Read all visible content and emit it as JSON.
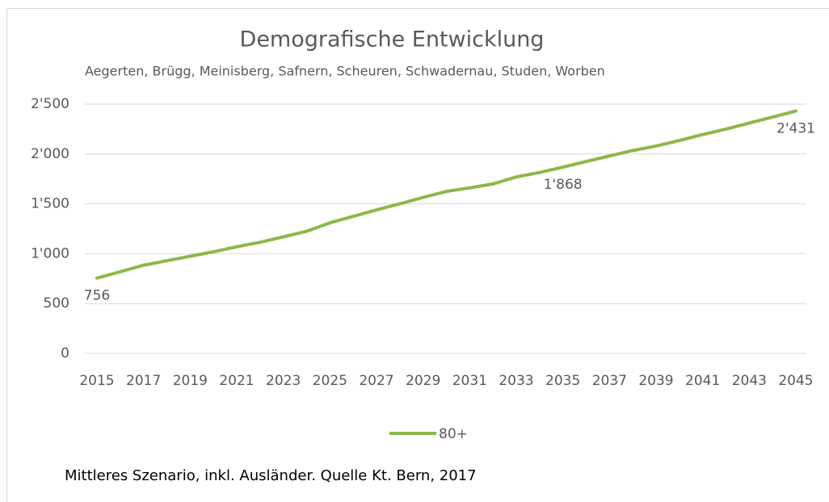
{
  "chart_data": {
    "type": "line",
    "title": "Demografische Entwicklung",
    "subtitle": "Aegerten, Brügg, Meinisberg, Safnern, Scheuren, Schwadernau, Studen, Worben",
    "note": "Mittleres Szenario, inkl. Ausländer. Quelle Kt. Bern, 2017",
    "x": [
      2015,
      2016,
      2017,
      2018,
      2019,
      2020,
      2021,
      2022,
      2023,
      2024,
      2025,
      2026,
      2027,
      2028,
      2029,
      2030,
      2031,
      2032,
      2033,
      2034,
      2035,
      2036,
      2037,
      2038,
      2039,
      2040,
      2041,
      2042,
      2043,
      2044,
      2045
    ],
    "xlim": [
      2015,
      2045
    ],
    "xticks": [
      2015,
      2017,
      2019,
      2021,
      2023,
      2025,
      2027,
      2029,
      2031,
      2033,
      2035,
      2037,
      2039,
      2041,
      2043,
      2045
    ],
    "ylim": [
      0,
      2500
    ],
    "yticks": [
      0,
      500,
      {
        "value": 1000,
        "label": "1'000"
      },
      {
        "value": 1500,
        "label": "1'500"
      },
      {
        "value": 2000,
        "label": "2'000"
      },
      {
        "value": 2500,
        "label": "2'500"
      }
    ],
    "grid": true,
    "legend": "bottom",
    "series": [
      {
        "name": "80+",
        "color": "#8cb84a",
        "values": [
          756,
          820,
          885,
          930,
          975,
          1020,
          1070,
          1115,
          1170,
          1225,
          1310,
          1375,
          1440,
          1500,
          1565,
          1625,
          1660,
          1700,
          1770,
          1815,
          1868,
          1925,
          1980,
          2035,
          2080,
          2135,
          2195,
          2250,
          2310,
          2370,
          2431
        ],
        "value_labels": [
          "756",
          null,
          null,
          null,
          null,
          null,
          null,
          null,
          null,
          null,
          null,
          null,
          null,
          null,
          null,
          null,
          null,
          null,
          null,
          null,
          "1'868",
          null,
          null,
          null,
          null,
          null,
          null,
          null,
          null,
          null,
          "2'431"
        ]
      }
    ]
  }
}
